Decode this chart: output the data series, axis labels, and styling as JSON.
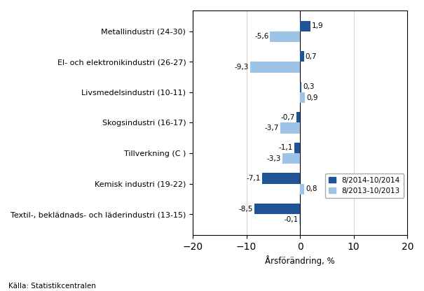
{
  "categories": [
    "Textil-, beklädnads- och läderindustri (13-15)",
    "Kemisk industri (19-22)",
    "Tillverkning (C )",
    "Skogsindustri (16-17)",
    "Livsmedelsindustri (10-11)",
    "El- och elektronikindustri (26-27)",
    "Metallindustri (24-30)"
  ],
  "series1_values": [
    -8.5,
    -7.1,
    -1.1,
    -0.7,
    0.3,
    0.7,
    1.9
  ],
  "series2_values": [
    -0.1,
    0.8,
    -3.3,
    -3.7,
    0.9,
    -9.3,
    -5.6
  ],
  "series1_label_values": [
    "-8,5",
    "-7,1",
    "-1,1",
    "-0,7",
    "0,3",
    "0,7",
    "1,9"
  ],
  "series2_label_values": [
    "-0,1",
    "0,8",
    "-3,3",
    "-3,7",
    "0,9",
    "-9,3",
    "-5,6"
  ],
  "series1_color": "#1f5496",
  "series2_color": "#9dc3e6",
  "series1_label": "8/2014-10/2014",
  "series2_label": "8/2013-10/2013",
  "xlabel": "Årsförändring, %",
  "xlim": [
    -20,
    20
  ],
  "xticks": [
    -20,
    -10,
    0,
    10,
    20
  ],
  "bar_height": 0.35,
  "source": "Källa: Statistikcentralen"
}
